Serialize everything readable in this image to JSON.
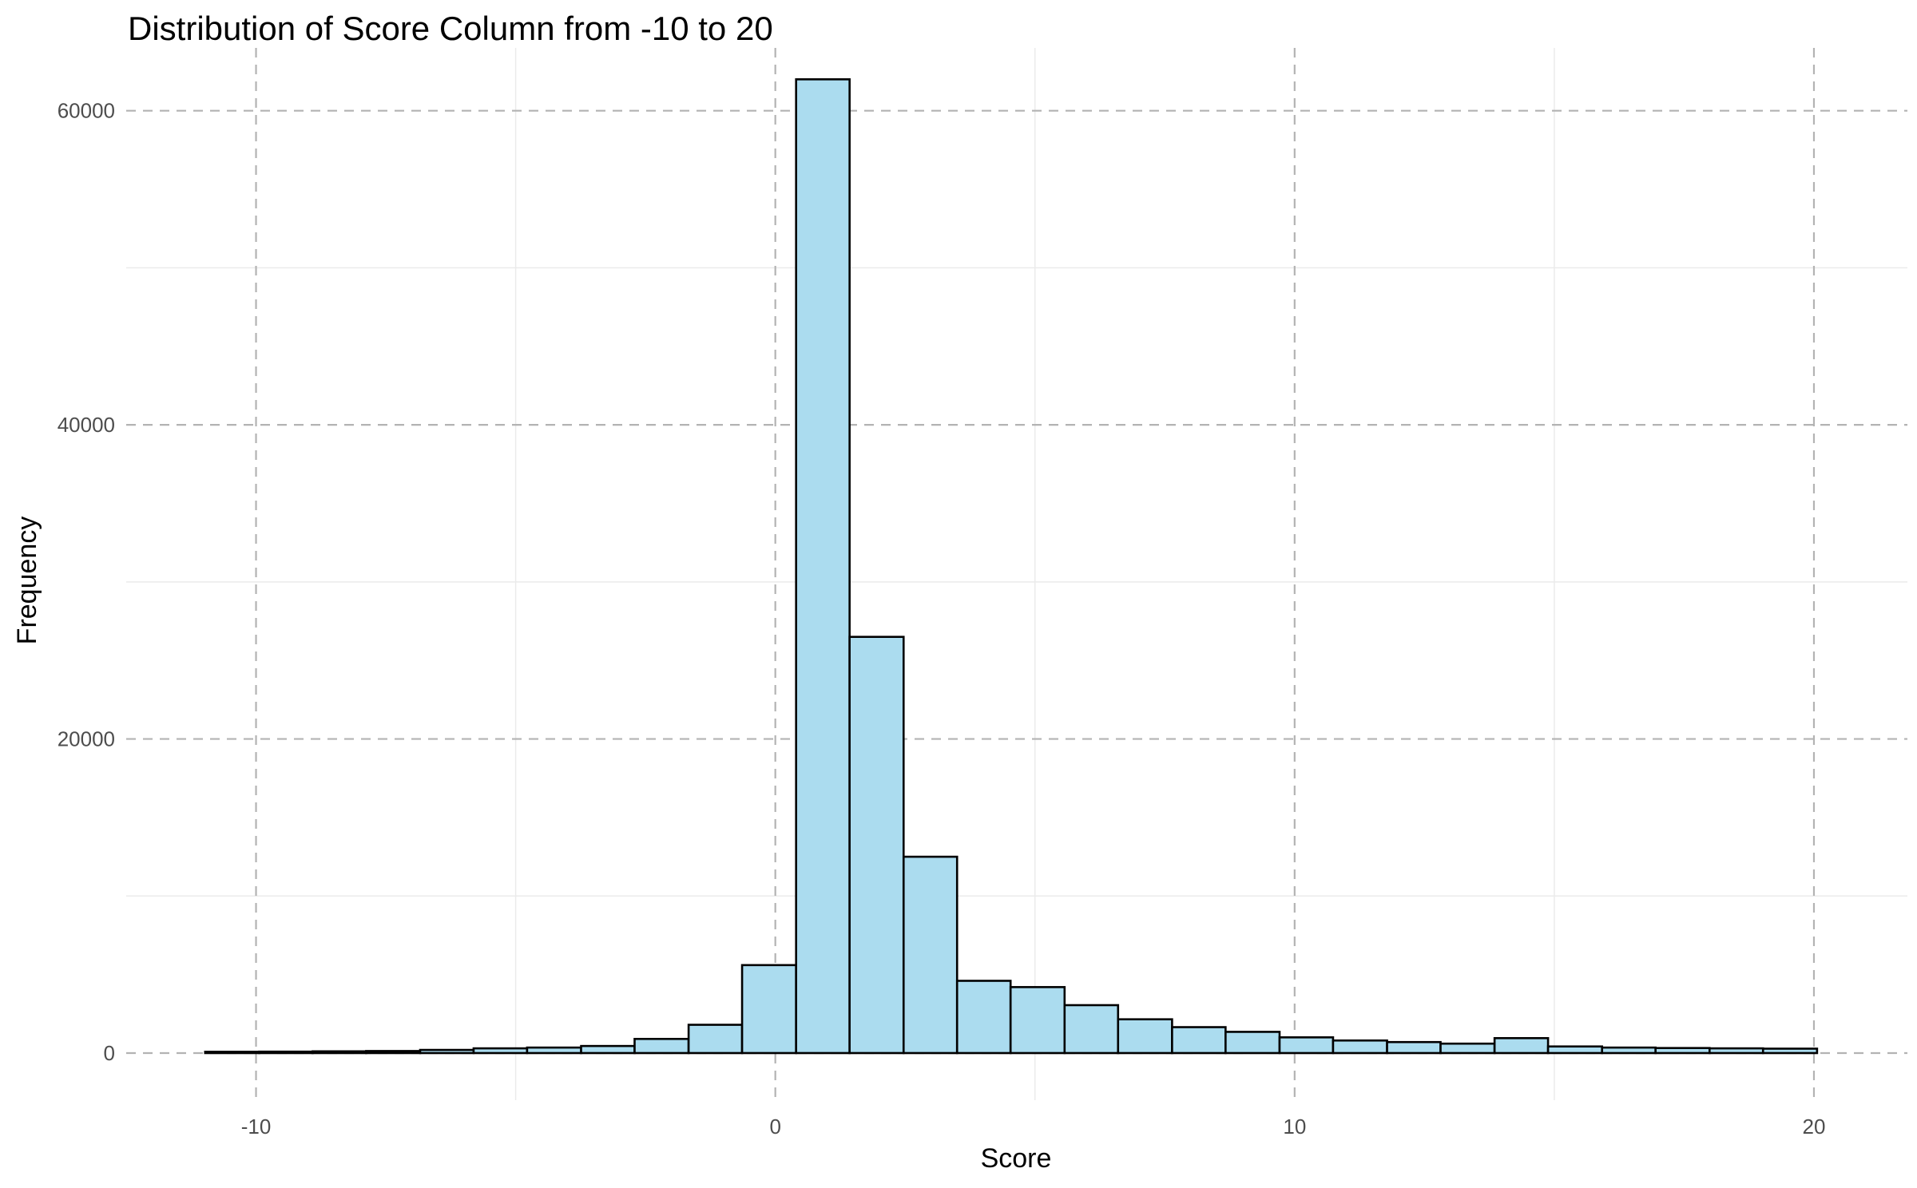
{
  "chart_data": {
    "type": "bar",
    "title": "Distribution of Score Column from -10 to 20",
    "xlabel": "Score",
    "ylabel": "Frequency",
    "xlim": [
      -12.5,
      21.8
    ],
    "ylim": [
      -3000,
      64000
    ],
    "x_ticks": [
      -10,
      0,
      10,
      20
    ],
    "x_tick_labels": [
      "-10",
      "0",
      "10",
      "20"
    ],
    "y_ticks": [
      0,
      20000,
      40000,
      60000
    ],
    "y_tick_labels": [
      "0",
      "20000",
      "40000",
      "60000"
    ],
    "y_minor_ticks": [
      10000,
      30000,
      50000
    ],
    "x_minor_ticks": [
      -5,
      5,
      15
    ],
    "grid": true,
    "major_grid_style": "dashed",
    "bin_width": 1.034,
    "bins": [
      {
        "x_start": -10.98,
        "x_end": -9.94,
        "count": 80
      },
      {
        "x_start": -9.94,
        "x_end": -8.91,
        "count": 90
      },
      {
        "x_start": -8.91,
        "x_end": -7.88,
        "count": 110
      },
      {
        "x_start": -7.88,
        "x_end": -6.84,
        "count": 130
      },
      {
        "x_start": -6.84,
        "x_end": -5.81,
        "count": 200
      },
      {
        "x_start": -5.81,
        "x_end": -4.78,
        "count": 300
      },
      {
        "x_start": -4.78,
        "x_end": -3.74,
        "count": 350
      },
      {
        "x_start": -3.74,
        "x_end": -2.71,
        "count": 450
      },
      {
        "x_start": -2.71,
        "x_end": -1.67,
        "count": 900
      },
      {
        "x_start": -1.67,
        "x_end": -0.64,
        "count": 1800
      },
      {
        "x_start": -0.64,
        "x_end": 0.4,
        "count": 5600
      },
      {
        "x_start": 0.4,
        "x_end": 1.43,
        "count": 62000
      },
      {
        "x_start": 1.43,
        "x_end": 2.47,
        "count": 26500
      },
      {
        "x_start": 2.47,
        "x_end": 3.5,
        "count": 12500
      },
      {
        "x_start": 3.5,
        "x_end": 4.53,
        "count": 4600
      },
      {
        "x_start": 4.53,
        "x_end": 5.57,
        "count": 4200
      },
      {
        "x_start": 5.57,
        "x_end": 6.6,
        "count": 3050
      },
      {
        "x_start": 6.6,
        "x_end": 7.64,
        "count": 2150
      },
      {
        "x_start": 7.64,
        "x_end": 8.67,
        "count": 1650
      },
      {
        "x_start": 8.67,
        "x_end": 9.71,
        "count": 1350
      },
      {
        "x_start": 9.71,
        "x_end": 10.74,
        "count": 1000
      },
      {
        "x_start": 10.74,
        "x_end": 11.78,
        "count": 800
      },
      {
        "x_start": 11.78,
        "x_end": 12.81,
        "count": 700
      },
      {
        "x_start": 12.81,
        "x_end": 13.85,
        "count": 600
      },
      {
        "x_start": 13.85,
        "x_end": 14.88,
        "count": 950
      },
      {
        "x_start": 14.88,
        "x_end": 15.92,
        "count": 420
      },
      {
        "x_start": 15.92,
        "x_end": 16.95,
        "count": 350
      },
      {
        "x_start": 16.95,
        "x_end": 17.99,
        "count": 320
      },
      {
        "x_start": 17.99,
        "x_end": 19.02,
        "count": 300
      },
      {
        "x_start": 19.02,
        "x_end": 20.06,
        "count": 280
      }
    ],
    "colors": {
      "bar_fill": "#abdcef",
      "bar_stroke": "#000000",
      "major_grid": "#b3b3b3",
      "minor_grid": "#ebebeb",
      "tick_text": "#4d4d4d",
      "title_text": "#000000"
    }
  }
}
